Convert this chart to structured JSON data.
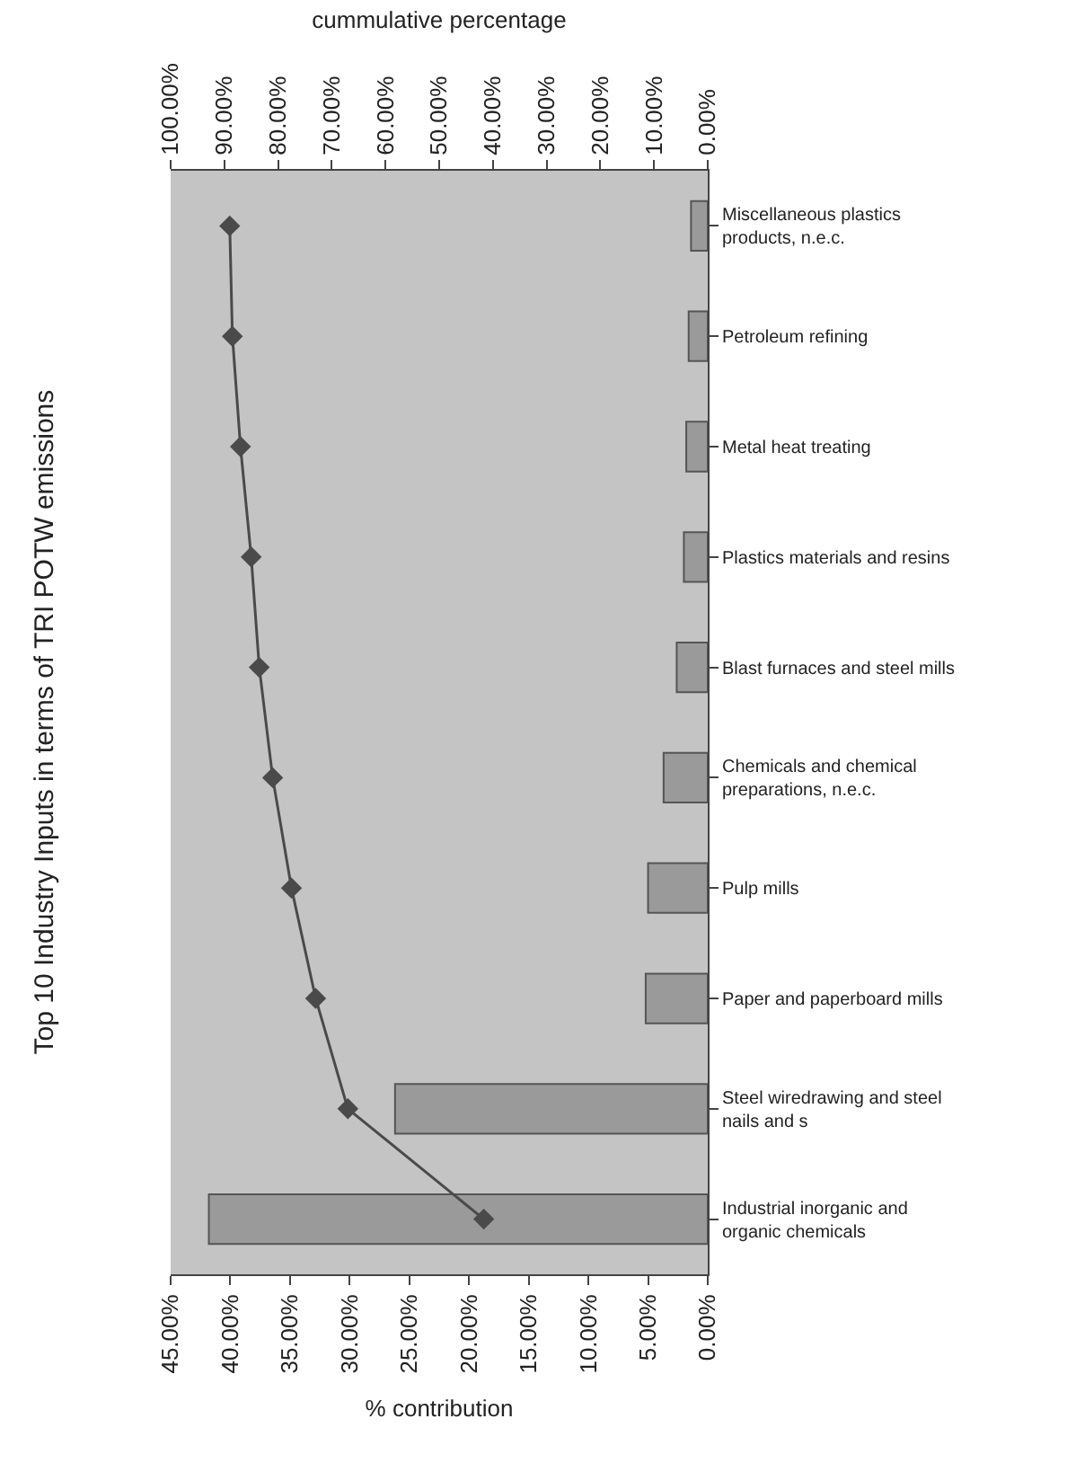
{
  "chart_data": {
    "type": "bar",
    "orientation": "horizontal",
    "title": "Top 10 Industry Inputs in terms of TRI POTW emissions",
    "xlabel": "% contribution",
    "x2label": "cummulative percentage",
    "categories": [
      "Miscellaneous plastics products, n.e.c.",
      "Petroleum refining",
      "Metal heat treating",
      "Plastics materials and resins",
      "Blast furnaces and steel mills",
      "Chemicals and chemical preparations, n.e.c.",
      "Pulp mills",
      "Paper and paperboard mills",
      "Steel wiredrawing and steel nails and s",
      "Industrial inorganic and organic chemicals"
    ],
    "series": [
      {
        "color": "#9a9a9a",
        "values": [
          1.4,
          1.6,
          1.8,
          2.0,
          2.6,
          3.7,
          5.0,
          5.2,
          26.2,
          41.8
        ]
      },
      {
        "type": "line",
        "axis": "x2",
        "color": "#4a4a4a",
        "marker": "diamond",
        "values": [
          89,
          88.5,
          87,
          85,
          83.5,
          81,
          77.5,
          73,
          67,
          41.7
        ]
      }
    ],
    "xlim": [
      45,
      0
    ],
    "xticks": [
      {
        "value": 45,
        "label": "45.00%"
      },
      {
        "value": 40,
        "label": "40.00%"
      },
      {
        "value": 35,
        "label": "35.00%"
      },
      {
        "value": 30,
        "label": "30.00%"
      },
      {
        "value": 25,
        "label": "25.00%"
      },
      {
        "value": 20,
        "label": "20.00%"
      },
      {
        "value": 15,
        "label": "15.00%"
      },
      {
        "value": 10,
        "label": "10.00%"
      },
      {
        "value": 5,
        "label": "5.00%"
      },
      {
        "value": 0,
        "label": "0.00%"
      }
    ],
    "x2lim": [
      100,
      0
    ],
    "x2ticks": [
      {
        "value": 100,
        "label": "100.00%"
      },
      {
        "value": 90,
        "label": "90.00%"
      },
      {
        "value": 80,
        "label": "80.00%"
      },
      {
        "value": 70,
        "label": "70.00%"
      },
      {
        "value": 60,
        "label": "60.00%"
      },
      {
        "value": 50,
        "label": "50.00%"
      },
      {
        "value": 40,
        "label": "40.00%"
      },
      {
        "value": 30,
        "label": "30.00%"
      },
      {
        "value": 20,
        "label": "20.00%"
      },
      {
        "value": 10,
        "label": "10.00%"
      },
      {
        "value": 0,
        "label": "0.00%"
      }
    ],
    "grid": false
  }
}
